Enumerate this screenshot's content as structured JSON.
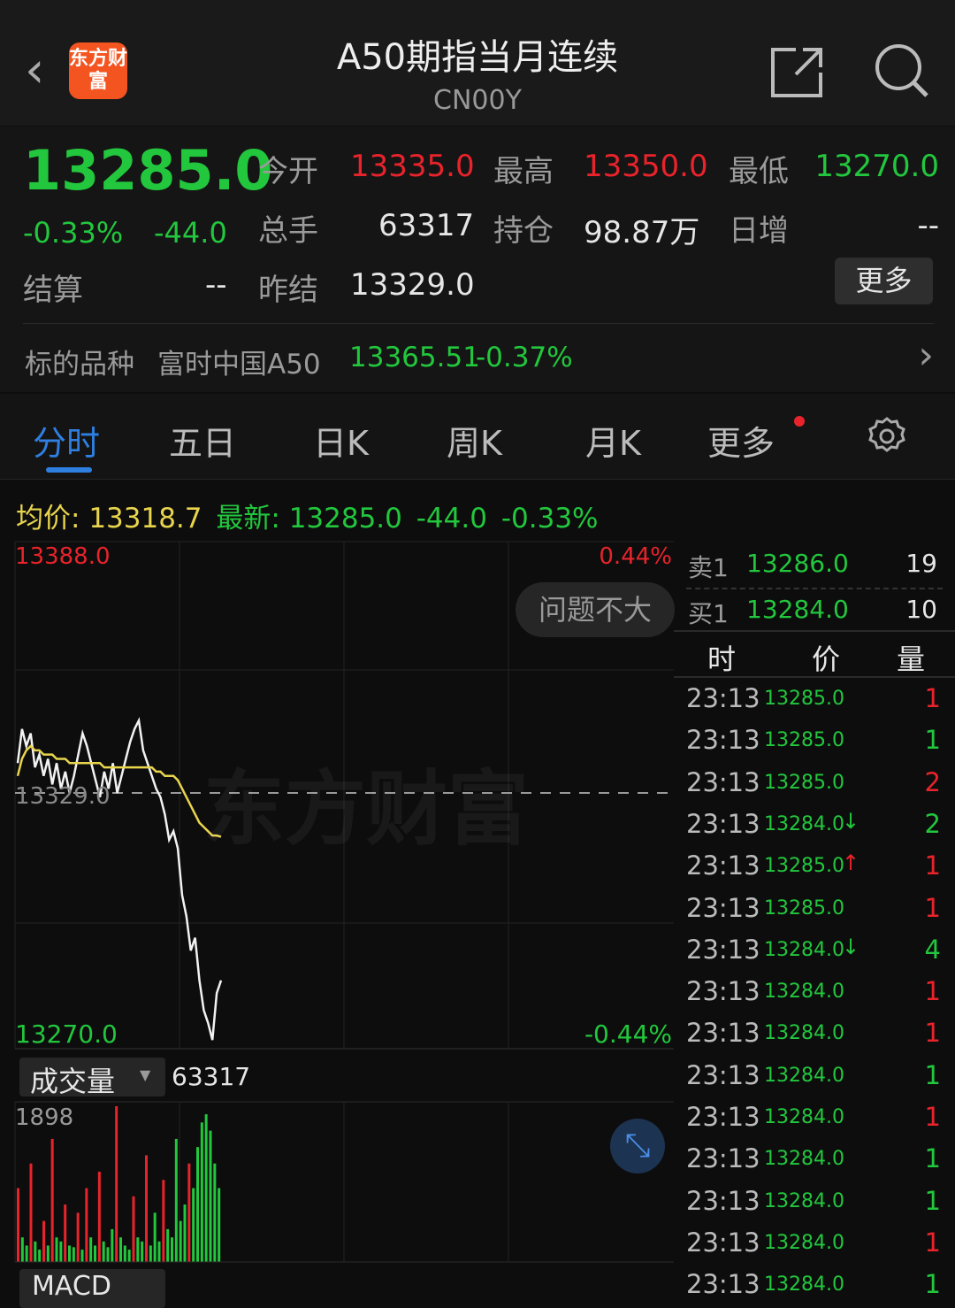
{
  "header": {
    "title": "A50期指当月连续",
    "code": "CN00Y",
    "logo_text": "东方财富",
    "icons": [
      "back-chevron-icon",
      "share-icon",
      "search-icon"
    ]
  },
  "quote": {
    "last": "13285.0",
    "pct": "-0.33%",
    "chg": "-44.0",
    "open_label": "今开",
    "open": "13335.0",
    "high_label": "最高",
    "high": "13350.0",
    "low_label": "最低",
    "low": "13270.0",
    "vol_label": "总手",
    "vol": "63317",
    "oi_label": "持仓",
    "oi": "98.87万",
    "inc_label": "日增",
    "inc": "--",
    "settle_label": "结算",
    "settle": "--",
    "prev_label": "昨结",
    "prev": "13329.0",
    "more": "更多",
    "underlying_label": "标的品种",
    "underlying_name": "富时中国A50",
    "underlying_price": "13365.51",
    "underlying_pct": "-0.37%"
  },
  "tabs": [
    {
      "label": "分时",
      "active": true
    },
    {
      "label": "五日"
    },
    {
      "label": "日K"
    },
    {
      "label": "周K"
    },
    {
      "label": "月K"
    },
    {
      "label": "更多"
    }
  ],
  "info": {
    "avg_label": "均价:",
    "avg": "13318.7",
    "latest_label": "最新:",
    "latest": "13285.0",
    "chg": "-44.0",
    "pct": "-0.33%"
  },
  "chart": {
    "top_price": "13388.0",
    "bottom_price": "13270.0",
    "top_pct": "0.44%",
    "bottom_pct": "-0.44%",
    "prev_close": "13329.0",
    "badge": "问题不大",
    "watermark": "东方财富",
    "volume_label": "成交量",
    "volume_total": "63317",
    "volume_max": "1898",
    "macd_label": "MACD"
  },
  "chart_data": {
    "type": "line",
    "ylim": [
      13270,
      13388
    ],
    "reference": 13329,
    "price": [
      13336,
      13344,
      13340,
      13343,
      13335,
      13338,
      13333,
      13337,
      13331,
      13336,
      13330,
      13334,
      13329,
      13333,
      13338,
      13343,
      13340,
      13336,
      13332,
      13328,
      13334,
      13330,
      13336,
      13329,
      13333,
      13337,
      13341,
      13344,
      13346,
      13339,
      13336,
      13333,
      13330,
      13328,
      13324,
      13318,
      13320,
      13316,
      13305,
      13300,
      13292,
      13295,
      13285,
      13278,
      13275,
      13271,
      13282,
      13285
    ],
    "average": [
      13333,
      13337,
      13339,
      13340,
      13339,
      13339,
      13338,
      13338,
      13338,
      13337,
      13337,
      13337,
      13336,
      13336,
      13336,
      13336,
      13336,
      13336,
      13336,
      13336,
      13335,
      13335,
      13335,
      13335,
      13335,
      13335,
      13335,
      13335,
      13335,
      13335,
      13335,
      13335,
      13334,
      13334,
      13333,
      13333,
      13333,
      13332,
      13330,
      13328,
      13326,
      13324,
      13322,
      13321,
      13320,
      13319,
      13319,
      13318.7
    ],
    "volume": [
      900,
      300,
      200,
      1200,
      250,
      150,
      500,
      200,
      1500,
      300,
      250,
      700,
      200,
      180,
      600,
      150,
      900,
      300,
      200,
      1100,
      250,
      180,
      400,
      1898,
      300,
      200,
      150,
      800,
      300,
      250,
      1300,
      200,
      600,
      250,
      1000,
      400,
      300,
      1500,
      500,
      700,
      1200,
      900,
      1400,
      1700,
      1800,
      1600,
      1200,
      900
    ],
    "volume_up": [
      1,
      0,
      0,
      1,
      0,
      0,
      1,
      0,
      1,
      0,
      0,
      1,
      0,
      0,
      1,
      0,
      1,
      0,
      0,
      1,
      0,
      0,
      0,
      1,
      0,
      0,
      0,
      1,
      0,
      0,
      1,
      0,
      0,
      0,
      1,
      0,
      0,
      0,
      0,
      0,
      1,
      0,
      0,
      0,
      0,
      0,
      0,
      0
    ]
  },
  "book": {
    "ask_label": "卖1",
    "ask": "13286.0",
    "ask_vol": "19",
    "bid_label": "买1",
    "bid": "13284.0",
    "bid_vol": "10"
  },
  "ticks_header": {
    "time": "时",
    "price": "价",
    "vol": "量"
  },
  "ticks": [
    {
      "time": "23:13",
      "price": "13285.0",
      "arrow": "",
      "vol": "1",
      "vc": "red"
    },
    {
      "time": "23:13",
      "price": "13285.0",
      "arrow": "",
      "vol": "1",
      "vc": "green"
    },
    {
      "time": "23:13",
      "price": "13285.0",
      "arrow": "",
      "vol": "2",
      "vc": "red"
    },
    {
      "time": "23:13",
      "price": "13284.0",
      "arrow": "↓",
      "vol": "2",
      "vc": "green"
    },
    {
      "time": "23:13",
      "price": "13285.0",
      "arrow": "↑",
      "vol": "1",
      "vc": "red"
    },
    {
      "time": "23:13",
      "price": "13285.0",
      "arrow": "",
      "vol": "1",
      "vc": "red"
    },
    {
      "time": "23:13",
      "price": "13284.0",
      "arrow": "↓",
      "vol": "4",
      "vc": "green"
    },
    {
      "time": "23:13",
      "price": "13284.0",
      "arrow": "",
      "vol": "1",
      "vc": "red"
    },
    {
      "time": "23:13",
      "price": "13284.0",
      "arrow": "",
      "vol": "1",
      "vc": "red"
    },
    {
      "time": "23:13",
      "price": "13284.0",
      "arrow": "",
      "vol": "1",
      "vc": "green"
    },
    {
      "time": "23:13",
      "price": "13284.0",
      "arrow": "",
      "vol": "1",
      "vc": "red"
    },
    {
      "time": "23:13",
      "price": "13284.0",
      "arrow": "",
      "vol": "1",
      "vc": "green"
    },
    {
      "time": "23:13",
      "price": "13284.0",
      "arrow": "",
      "vol": "1",
      "vc": "green"
    },
    {
      "time": "23:13",
      "price": "13284.0",
      "arrow": "",
      "vol": "1",
      "vc": "red"
    },
    {
      "time": "23:13",
      "price": "13284.0",
      "arrow": "",
      "vol": "1",
      "vc": "green"
    }
  ],
  "colors": {
    "up": "#e8232b",
    "down": "#22c73d",
    "avg": "#e8d44d",
    "accent": "#2f7fe0"
  }
}
